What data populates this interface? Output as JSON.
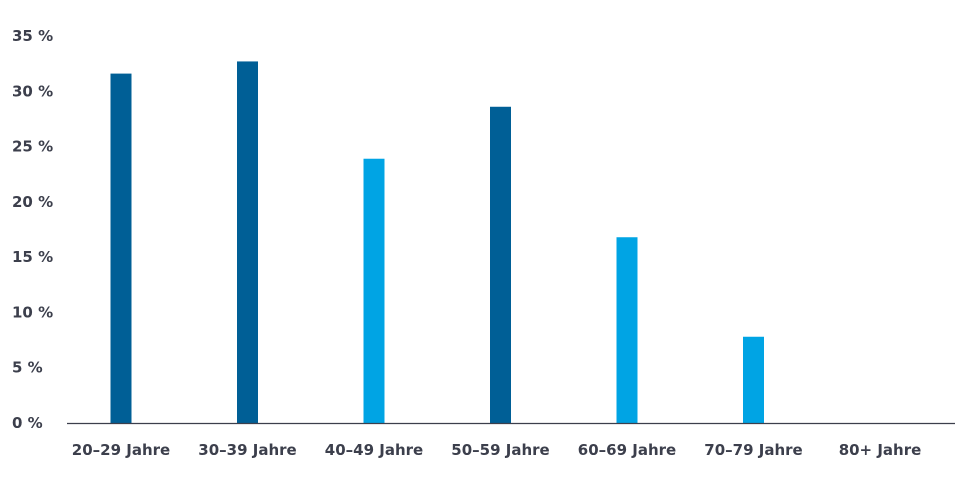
{
  "chart_data": {
    "type": "bar",
    "title": "",
    "xlabel": "",
    "ylabel": "",
    "ylim": [
      0,
      35
    ],
    "y_ticks": [
      0,
      5,
      10,
      15,
      20,
      25,
      30,
      35
    ],
    "y_tick_suffix": " %",
    "grid": false,
    "legend": "none",
    "categories": [
      "20–29 Jahre",
      "30–39 Jahre",
      "40–49 Jahre",
      "50–59 Jahre",
      "60–69 Jahre",
      "70–79 Jahre",
      "80+ Jahre"
    ],
    "values": [
      31.6,
      32.7,
      23.9,
      28.6,
      16.8,
      7.8,
      0
    ],
    "bar_colors": [
      "#005f96",
      "#005f96",
      "#00a4e4",
      "#005f96",
      "#00a4e4",
      "#00a4e4",
      "#00a4e4"
    ]
  }
}
